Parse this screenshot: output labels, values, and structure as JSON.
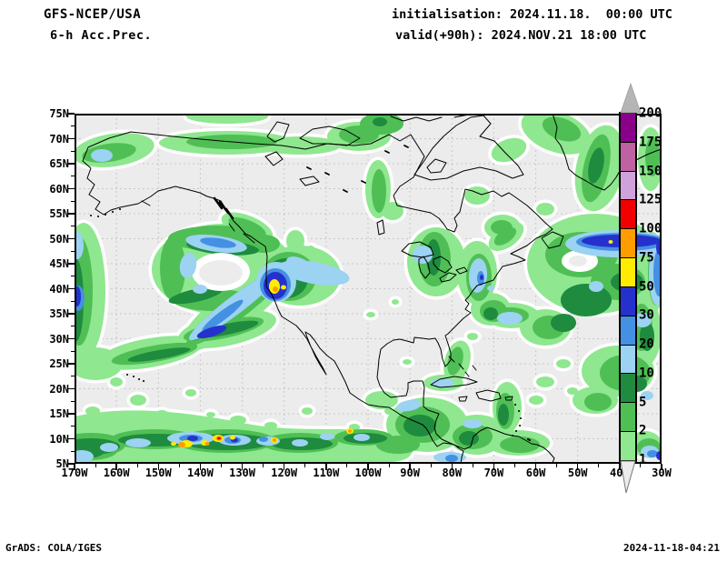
{
  "header": {
    "model": "GFS-NCEP/USA",
    "variable": "6-h Acc.Prec.",
    "init": "initialisation: 2024.11.18.  00:00 UTC",
    "valid": "valid(+90h): 2024.NOV.21 18:00 UTC"
  },
  "map": {
    "lat_labels": [
      "75N",
      "70N",
      "65N",
      "60N",
      "55N",
      "50N",
      "45N",
      "40N",
      "35N",
      "30N",
      "25N",
      "20N",
      "15N",
      "10N",
      "5N"
    ],
    "lon_labels": [
      "170W",
      "160W",
      "150W",
      "140W",
      "130W",
      "120W",
      "110W",
      "100W",
      "90W",
      "80W",
      "70W",
      "60W",
      "50W",
      "40W",
      "30W"
    ],
    "background_color": "#ececec",
    "grid_color": "#c8c8c8",
    "coast_color": "#000000"
  },
  "colorbar": {
    "levels": [
      "200",
      "175",
      "150",
      "125",
      "100",
      "75",
      "50",
      "30",
      "20",
      "10",
      "5",
      "2",
      "1"
    ],
    "colors_top_to_bottom": [
      "#8a008a",
      "#bf62a2",
      "#cfa2dc",
      "#f20000",
      "#ff9d00",
      "#ffec00",
      "#2531cd",
      "#4490e2",
      "#9cd2f2",
      "#1e8b3e",
      "#4fbf55",
      "#8fe78f"
    ],
    "above_max_color": "#b5b5b5",
    "below_min_color": "#ededed"
  },
  "footer": {
    "left": "GrADS: COLA/IGES",
    "right": "2024-11-18-04:21"
  }
}
